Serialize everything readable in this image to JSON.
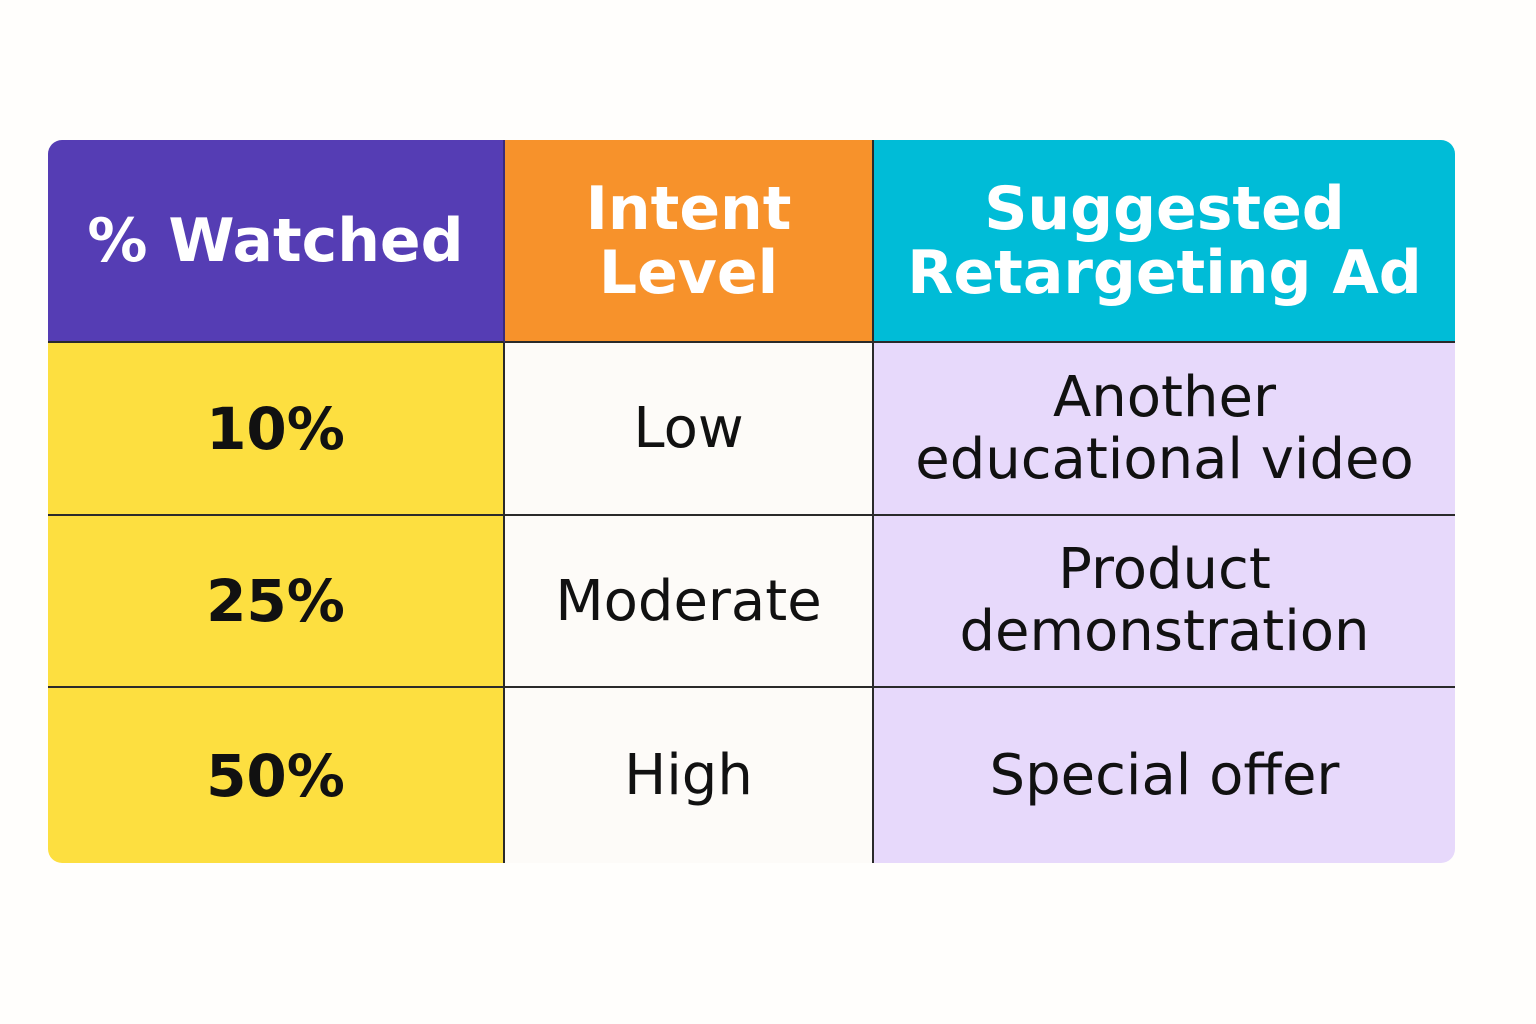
{
  "table": {
    "headers": [
      "% Watched",
      "Intent\nLevel",
      "Suggested\nRetargeting Ad"
    ],
    "rows": [
      {
        "watched": "10%",
        "intent": "Low",
        "ad": "Another\neducational video"
      },
      {
        "watched": "25%",
        "intent": "Moderate",
        "ad": "Product\ndemonstration"
      },
      {
        "watched": "50%",
        "intent": "High",
        "ad": "Special offer"
      }
    ]
  },
  "colors": {
    "header_watched": "#553db4",
    "header_intent": "#f7922b",
    "header_ad": "#00bcd7",
    "col_watched": "#fddf40",
    "col_intent": "#fdfbf8",
    "col_ad": "#e7d9fb"
  }
}
